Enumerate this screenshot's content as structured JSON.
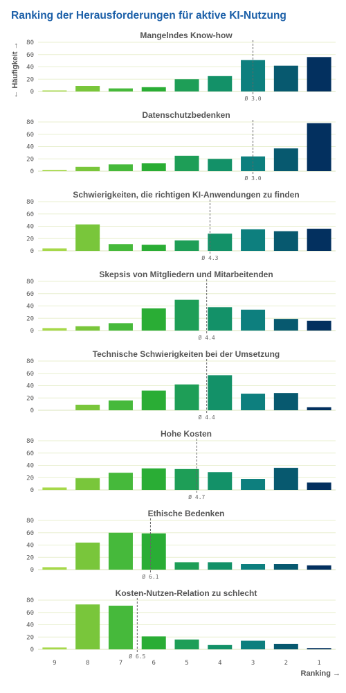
{
  "title": "Ranking der Herausforderungen für aktive KI-Nutzung",
  "colors": {
    "title": "#1b5fa8",
    "grid": "#e8efcf",
    "text": "#555555",
    "avg_line": "#666666",
    "bars": [
      "#a6d84a",
      "#79c63b",
      "#46b93b",
      "#2aad35",
      "#1e9e57",
      "#139168",
      "#0d7f7e",
      "#07596f",
      "#03305f"
    ]
  },
  "chart_data": {
    "type": "bar",
    "categories": [
      "9",
      "8",
      "7",
      "6",
      "5",
      "4",
      "3",
      "2",
      "1"
    ],
    "xlabel": "Ranking →",
    "ylabel": "← Häufigkeit →",
    "ylim": [
      0,
      80
    ],
    "yticks": [
      0,
      20,
      40,
      60,
      80
    ],
    "grid": true,
    "panels": [
      {
        "title": "Mangelndes Know-how",
        "values": [
          1,
          9,
          5,
          7,
          20,
          25,
          51,
          42,
          56
        ],
        "avg": 3.0,
        "avg_label": "Ø 3.0"
      },
      {
        "title": "Datenschutzbedenken",
        "values": [
          2,
          7,
          11,
          13,
          25,
          20,
          24,
          37,
          78
        ],
        "avg": 3.0,
        "avg_label": "Ø 3.0"
      },
      {
        "title": "Schwierigkeiten, die richtigen KI-Anwendungen zu finden",
        "values": [
          4,
          43,
          11,
          10,
          17,
          28,
          35,
          32,
          36
        ],
        "avg": 4.3,
        "avg_label": "Ø 4.3"
      },
      {
        "title": "Skepsis von Mitgliedern und Mitarbeitenden",
        "values": [
          4,
          7,
          12,
          36,
          50,
          38,
          34,
          19,
          16
        ],
        "avg": 4.4,
        "avg_label": "Ø 4.4"
      },
      {
        "title": "Technische Schwierigkeiten bei der Umsetzung",
        "values": [
          0,
          9,
          16,
          32,
          42,
          57,
          27,
          28,
          5
        ],
        "avg": 4.4,
        "avg_label": "Ø 4.4"
      },
      {
        "title": "Hohe Kosten",
        "values": [
          4,
          19,
          28,
          35,
          34,
          29,
          18,
          36,
          12
        ],
        "avg": 4.7,
        "avg_label": "Ø 4.7"
      },
      {
        "title": "Ethische Bedenken",
        "values": [
          4,
          44,
          60,
          59,
          12,
          12,
          9,
          9,
          7
        ],
        "avg": 6.1,
        "avg_label": "Ø 6.1"
      },
      {
        "title": "Kosten-Nutzen-Relation zu schlecht",
        "values": [
          3,
          73,
          71,
          21,
          16,
          7,
          14,
          9,
          2
        ],
        "avg": 6.5,
        "avg_label": "Ø 6.5"
      }
    ]
  }
}
